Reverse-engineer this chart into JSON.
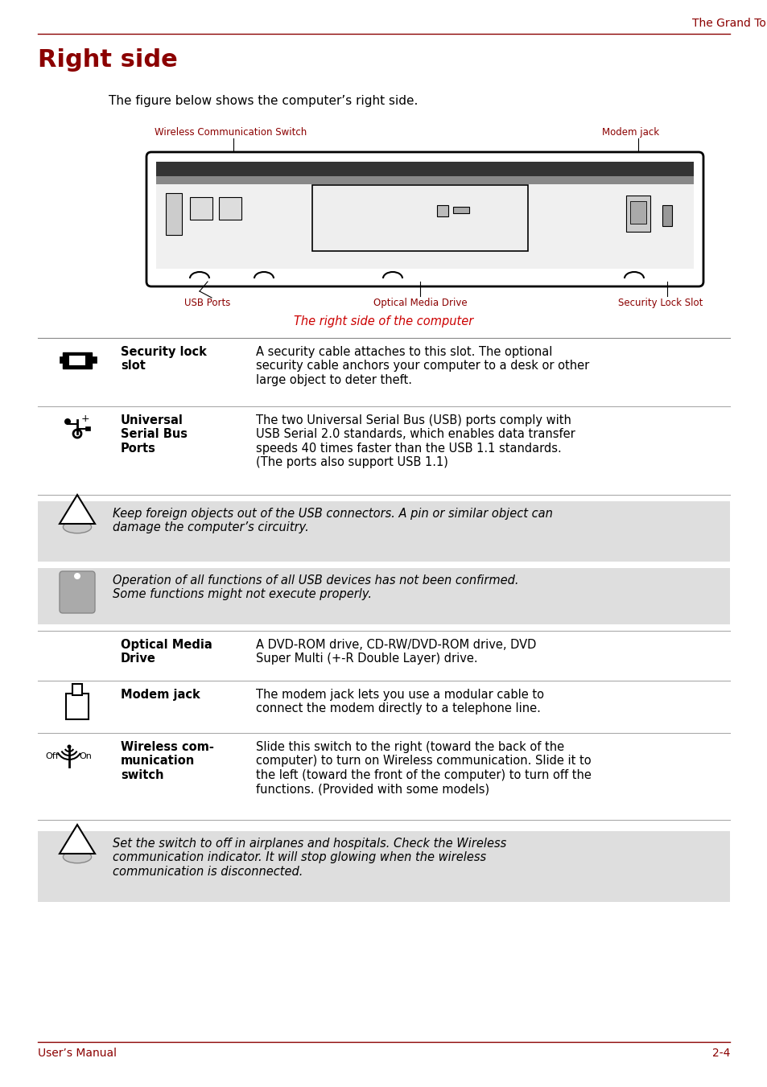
{
  "page_title": "The Grand Tour",
  "section_title": "Right side",
  "intro_text": "The figure below shows the computer’s right side.",
  "figure_caption": "The right side of the computer",
  "label_wireless": "Wireless Communication Switch",
  "label_modem_top": "Modem jack",
  "label_usb": "USB Ports",
  "label_optical_bottom": "Optical Media Drive",
  "label_security_bottom": "Security Lock Slot",
  "row1_term": "Security lock\nslot",
  "row1_desc": "A security cable attaches to this slot. The optional\nsecurity cable anchors your computer to a desk or other\nlarge object to deter theft.",
  "row2_term": "Universal\nSerial Bus\nPorts",
  "row2_desc": "The two Universal Serial Bus (USB) ports comply with\nUSB Serial 2.0 standards, which enables data transfer\nspeeds 40 times faster than the USB 1.1 standards.\n(The ports also support USB 1.1)",
  "warn1_desc": "Keep foreign objects out of the USB connectors. A pin or similar object can\ndamage the computer’s circuitry.",
  "info1_desc": "Operation of all functions of all USB devices has not been confirmed.\nSome functions might not execute properly.",
  "row3_term": "Optical Media\nDrive",
  "row3_desc": "A DVD-ROM drive, CD-RW/DVD-ROM drive, DVD\nSuper Multi (+-R Double Layer) drive.",
  "row4_term": "Modem jack",
  "row4_desc": "The modem jack lets you use a modular cable to\nconnect the modem directly to a telephone line.",
  "row5_term": "Wireless com-\nmunication\nswitch",
  "row5_desc": "Slide this switch to the right (toward the back of the\ncomputer) to turn on Wireless communication. Slide it to\nthe left (toward the front of the computer) to turn off the\nfunctions. (Provided with some models)",
  "warn2_desc": "Set the switch to off in airplanes and hospitals. Check the Wireless\ncommunication indicator. It will stop glowing when the wireless\ncommunication is disconnected.",
  "footer_left": "User’s Manual",
  "footer_right": "2-4",
  "red": "#8B0000",
  "black": "#000000",
  "gray_bg": "#DEDEDE",
  "white": "#FFFFFF"
}
